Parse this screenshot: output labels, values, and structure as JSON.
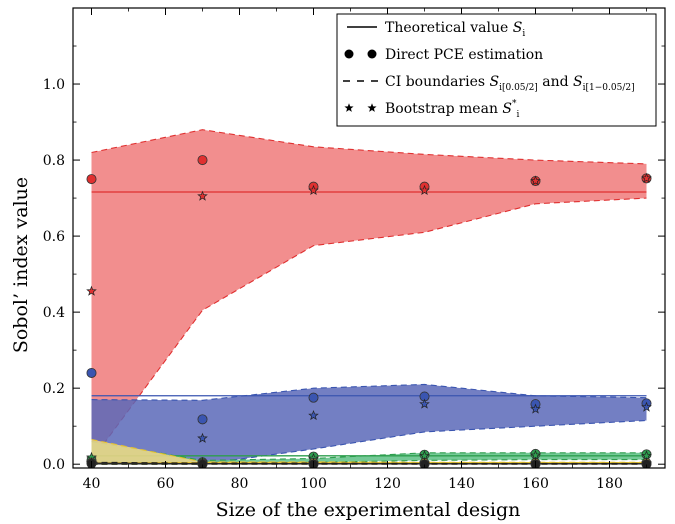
{
  "chart_data": {
    "type": "line",
    "title": "",
    "xlabel": "Size of the experimental design",
    "ylabel": "Sobol’ index value",
    "xlim": [
      35,
      195
    ],
    "ylim": [
      -0.01,
      1.2
    ],
    "x_ticks": [
      40,
      60,
      80,
      100,
      120,
      140,
      160,
      180
    ],
    "y_ticks": [
      0.0,
      0.2,
      0.4,
      0.6,
      0.8,
      1.0
    ],
    "x": [
      40,
      70,
      100,
      130,
      160,
      190
    ],
    "legend": {
      "position": "top-right",
      "entries": [
        {
          "marker": "line",
          "label": "Theoretical value S",
          "sub": "i"
        },
        {
          "marker": "circle",
          "label": "Direct PCE estimation"
        },
        {
          "marker": "dashed",
          "label_parts": [
            "CI boundaries ",
            "S",
            "i[0.05/2]",
            " and ",
            "S",
            "i[1−0.05/2]"
          ]
        },
        {
          "marker": "star",
          "label": "Bootstrap mean S",
          "sup": "*",
          "sub": "i"
        }
      ]
    },
    "series": [
      {
        "color": "#e03030",
        "fill": "#f07a7a",
        "theoretical": 0.716,
        "direct_pce": [
          0.75,
          0.8,
          0.73,
          0.73,
          0.745,
          0.752
        ],
        "bootstrap_mean": [
          0.455,
          0.705,
          0.72,
          0.72,
          0.745,
          0.752
        ],
        "ci_lower": [
          0.01,
          0.405,
          0.575,
          0.61,
          0.685,
          0.7
        ],
        "ci_upper": [
          0.82,
          0.88,
          0.835,
          0.815,
          0.8,
          0.79
        ]
      },
      {
        "color": "#3a55b0",
        "fill": "#5a68b8",
        "theoretical": 0.18,
        "direct_pce": [
          0.24,
          0.118,
          0.175,
          0.178,
          0.158,
          0.16
        ],
        "bootstrap_mean": [
          0.015,
          0.068,
          0.128,
          0.158,
          0.145,
          0.15
        ],
        "ci_lower": [
          0.0,
          0.0,
          0.04,
          0.085,
          0.1,
          0.115
        ],
        "ci_upper": [
          0.17,
          0.168,
          0.2,
          0.21,
          0.18,
          0.175
        ]
      },
      {
        "color": "#2e9e4e",
        "fill": "#5cc084",
        "theoretical": 0.022,
        "direct_pce": [
          0.01,
          0.005,
          0.02,
          0.025,
          0.027,
          0.026
        ],
        "bootstrap_mean": [
          0.018,
          0.005,
          0.015,
          0.022,
          0.023,
          0.022
        ],
        "ci_lower": [
          0.0,
          0.0,
          0.005,
          0.01,
          0.012,
          0.012
        ],
        "ci_upper": [
          0.06,
          0.01,
          0.015,
          0.03,
          0.03,
          0.03
        ]
      },
      {
        "color": "#e6c230",
        "fill": "#f2d68a",
        "theoretical": 0.004,
        "direct_pce": [
          0.004,
          0.002,
          0.003,
          0.003,
          0.003,
          0.003
        ],
        "bootstrap_mean": [
          0.004,
          0.002,
          0.003,
          0.003,
          0.003,
          0.003
        ],
        "ci_lower": [
          0.0,
          0.0,
          0.0,
          0.0,
          0.0,
          0.0
        ],
        "ci_upper": [
          0.065,
          0.006,
          0.006,
          0.005,
          0.005,
          0.005
        ]
      },
      {
        "color": "#222222",
        "fill": "#555555",
        "theoretical": 0.001,
        "direct_pce": [
          0.002,
          0.0,
          0.0,
          0.0,
          0.0,
          0.0
        ],
        "bootstrap_mean": [
          0.003,
          0.0,
          0.0,
          0.0,
          0.0,
          0.0
        ],
        "ci_lower": [
          0.0,
          0.0,
          0.0,
          0.0,
          0.0,
          0.0
        ],
        "ci_upper": [
          0.005,
          0.003,
          0.003,
          0.002,
          0.002,
          0.002
        ]
      }
    ]
  }
}
